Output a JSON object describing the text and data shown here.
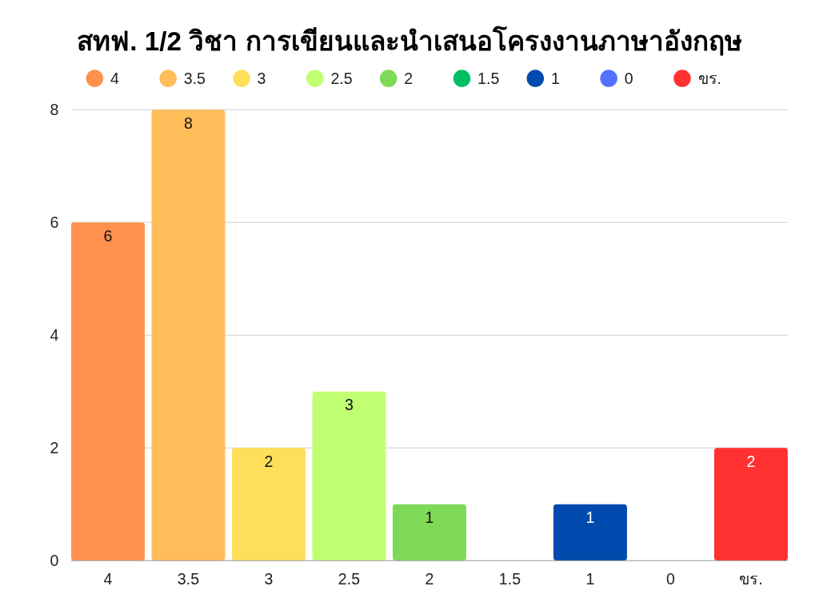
{
  "chart_data": {
    "type": "bar",
    "title": "สทฟ. 1/2 วิชา การเขียนและนำเสนอโครงงานภาษาอังกฤษ",
    "categories": [
      "4",
      "3.5",
      "3",
      "2.5",
      "2",
      "1.5",
      "1",
      "0",
      "ขร."
    ],
    "stacked": true,
    "series": [
      {
        "name": "4",
        "color": "#ff914d",
        "values": [
          6,
          null,
          null,
          null,
          null,
          null,
          null,
          null,
          null
        ],
        "value_labels": [
          "6",
          null,
          null,
          null,
          null,
          null,
          null,
          null,
          null
        ]
      },
      {
        "name": "3.5",
        "color": "#ffbd59",
        "values": [
          null,
          8,
          null,
          null,
          null,
          null,
          null,
          null,
          null
        ],
        "value_labels": [
          null,
          "8",
          null,
          null,
          null,
          null,
          null,
          null,
          null
        ]
      },
      {
        "name": "3",
        "color": "#ffde59",
        "values": [
          null,
          null,
          2,
          null,
          null,
          null,
          null,
          null,
          null
        ],
        "value_labels": [
          null,
          null,
          "2",
          null,
          null,
          null,
          null,
          null,
          null
        ]
      },
      {
        "name": "2.5",
        "color": "#c1ff72",
        "values": [
          null,
          null,
          null,
          3,
          null,
          null,
          null,
          null,
          null
        ],
        "value_labels": [
          null,
          null,
          null,
          "3",
          null,
          null,
          null,
          null,
          null
        ]
      },
      {
        "name": "2",
        "color": "#7ed957",
        "values": [
          null,
          null,
          null,
          null,
          1,
          null,
          null,
          null,
          null
        ],
        "value_labels": [
          null,
          null,
          null,
          null,
          "1",
          null,
          null,
          null,
          null
        ]
      },
      {
        "name": "1.5",
        "color": "#00bf63",
        "values": [
          null,
          null,
          null,
          null,
          null,
          0,
          null,
          null,
          null
        ]
      },
      {
        "name": "1",
        "color": "#004aad",
        "values": [
          null,
          null,
          null,
          null,
          null,
          null,
          1,
          null,
          null
        ],
        "value_labels": [
          null,
          null,
          null,
          null,
          null,
          null,
          "1",
          null,
          null
        ]
      },
      {
        "name": "0",
        "color": "#5271ff",
        "values": [
          null,
          null,
          null,
          null,
          null,
          null,
          null,
          0,
          null
        ]
      },
      {
        "name": "ขร.",
        "color": "#ff3131",
        "values": [
          null,
          null,
          null,
          null,
          null,
          null,
          null,
          null,
          2
        ],
        "value_labels": [
          null,
          null,
          null,
          null,
          null,
          null,
          null,
          null,
          "2"
        ]
      }
    ],
    "ylim": [
      0,
      8
    ],
    "yticks": [
      0,
      2,
      4,
      6,
      8
    ],
    "grid": "y",
    "legend": "top"
  }
}
